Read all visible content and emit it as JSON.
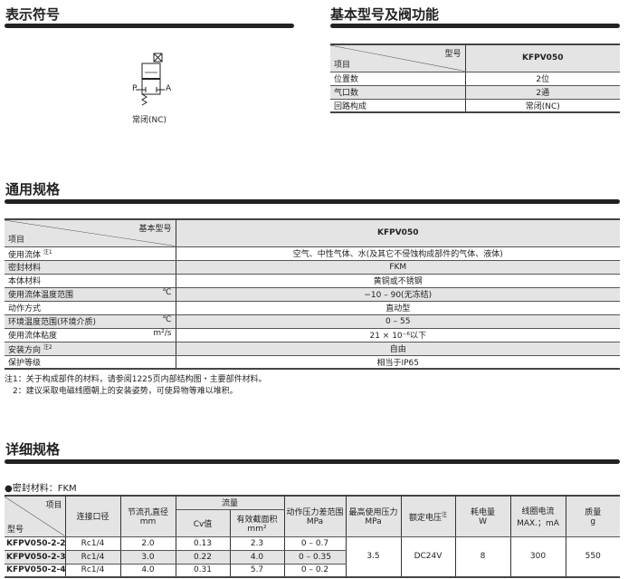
{
  "sections": {
    "symbol": "表示符号",
    "basic": "基本型号及阀功能",
    "general": "通用规格",
    "detail": "详细规格"
  },
  "symbol": {
    "port_p": "P",
    "port_a": "A",
    "caption": "常闭(NC)"
  },
  "basic_table": {
    "header_top": "型号",
    "header_bottom": "项目",
    "model": "KFPV050",
    "rows": [
      {
        "label": "位置数",
        "value": "2位"
      },
      {
        "label": "气口数",
        "value": "2通"
      },
      {
        "label": "回路构成",
        "value": "常闭(NC)"
      }
    ]
  },
  "general_table": {
    "header_top": "基本型号",
    "header_bottom": "项目",
    "model": "KFPV050",
    "rows": [
      {
        "label": "使用流体",
        "note": "注1",
        "unit": "",
        "value": "空气、中性气体、水(及其它不侵蚀构成部件的气体、液体)"
      },
      {
        "label": "密封材料",
        "note": "",
        "unit": "",
        "value": "FKM"
      },
      {
        "label": "本体材料",
        "note": "",
        "unit": "",
        "value": "黄铜或不锈钢"
      },
      {
        "label": "使用流体温度范围",
        "note": "",
        "unit": "℃",
        "value": "−10 – 90(无冻结)"
      },
      {
        "label": "动作方式",
        "note": "",
        "unit": "",
        "value": "直动型"
      },
      {
        "label": "环境温度范围(环境介质)",
        "note": "",
        "unit": "℃",
        "value": "0 – 55"
      },
      {
        "label": "使用流体粘度",
        "note": "",
        "unit": "m²/s",
        "value": "21 × 10⁻⁶以下"
      },
      {
        "label": "安装方向",
        "note": "注2",
        "unit": "",
        "value": "自由"
      },
      {
        "label": "保护等级",
        "note": "",
        "unit": "",
        "value": "相当于IP65"
      }
    ]
  },
  "notes": [
    "注1：关于构成部件的材料，请参阅1225页内部结构图・主要部件材料。",
    "2：建议采取电磁线圈朝上的安装姿势，可使异物等难以堆积。"
  ],
  "detail": {
    "subtitle": "●密封材料：FKM",
    "headers": {
      "item": "项目",
      "model": "型号",
      "port": "连接口径",
      "orifice": "节流孔直径",
      "orifice_unit": "mm",
      "flow": "流量",
      "cv": "Cv值",
      "area": "有效截面积",
      "area_unit": "mm²",
      "diff": "动作压力差范围",
      "diff_unit": "MPa",
      "maxp": "最高使用压力",
      "maxp_unit": "MPa",
      "voltage": "额定电压",
      "voltage_note": "注",
      "power": "耗电量",
      "power_unit": "W",
      "current": "线圈电流",
      "current_unit": "MAX.；mA",
      "mass": "质量",
      "mass_unit": "g"
    },
    "rows": [
      {
        "model": "KFPV050-2-20",
        "port": "Rc1/4",
        "orifice": "2.0",
        "cv": "0.13",
        "area": "2.3",
        "diff": "0 – 0.7"
      },
      {
        "model": "KFPV050-2-30",
        "port": "Rc1/4",
        "orifice": "3.0",
        "cv": "0.22",
        "area": "4.0",
        "diff": "0 – 0.35"
      },
      {
        "model": "KFPV050-2-40",
        "port": "Rc1/4",
        "orifice": "4.0",
        "cv": "0.31",
        "area": "5.7",
        "diff": "0 – 0.2"
      }
    ],
    "shared": {
      "maxp": "3.5",
      "voltage": "DC24V",
      "power": "8",
      "current": "300",
      "mass": "550"
    }
  }
}
